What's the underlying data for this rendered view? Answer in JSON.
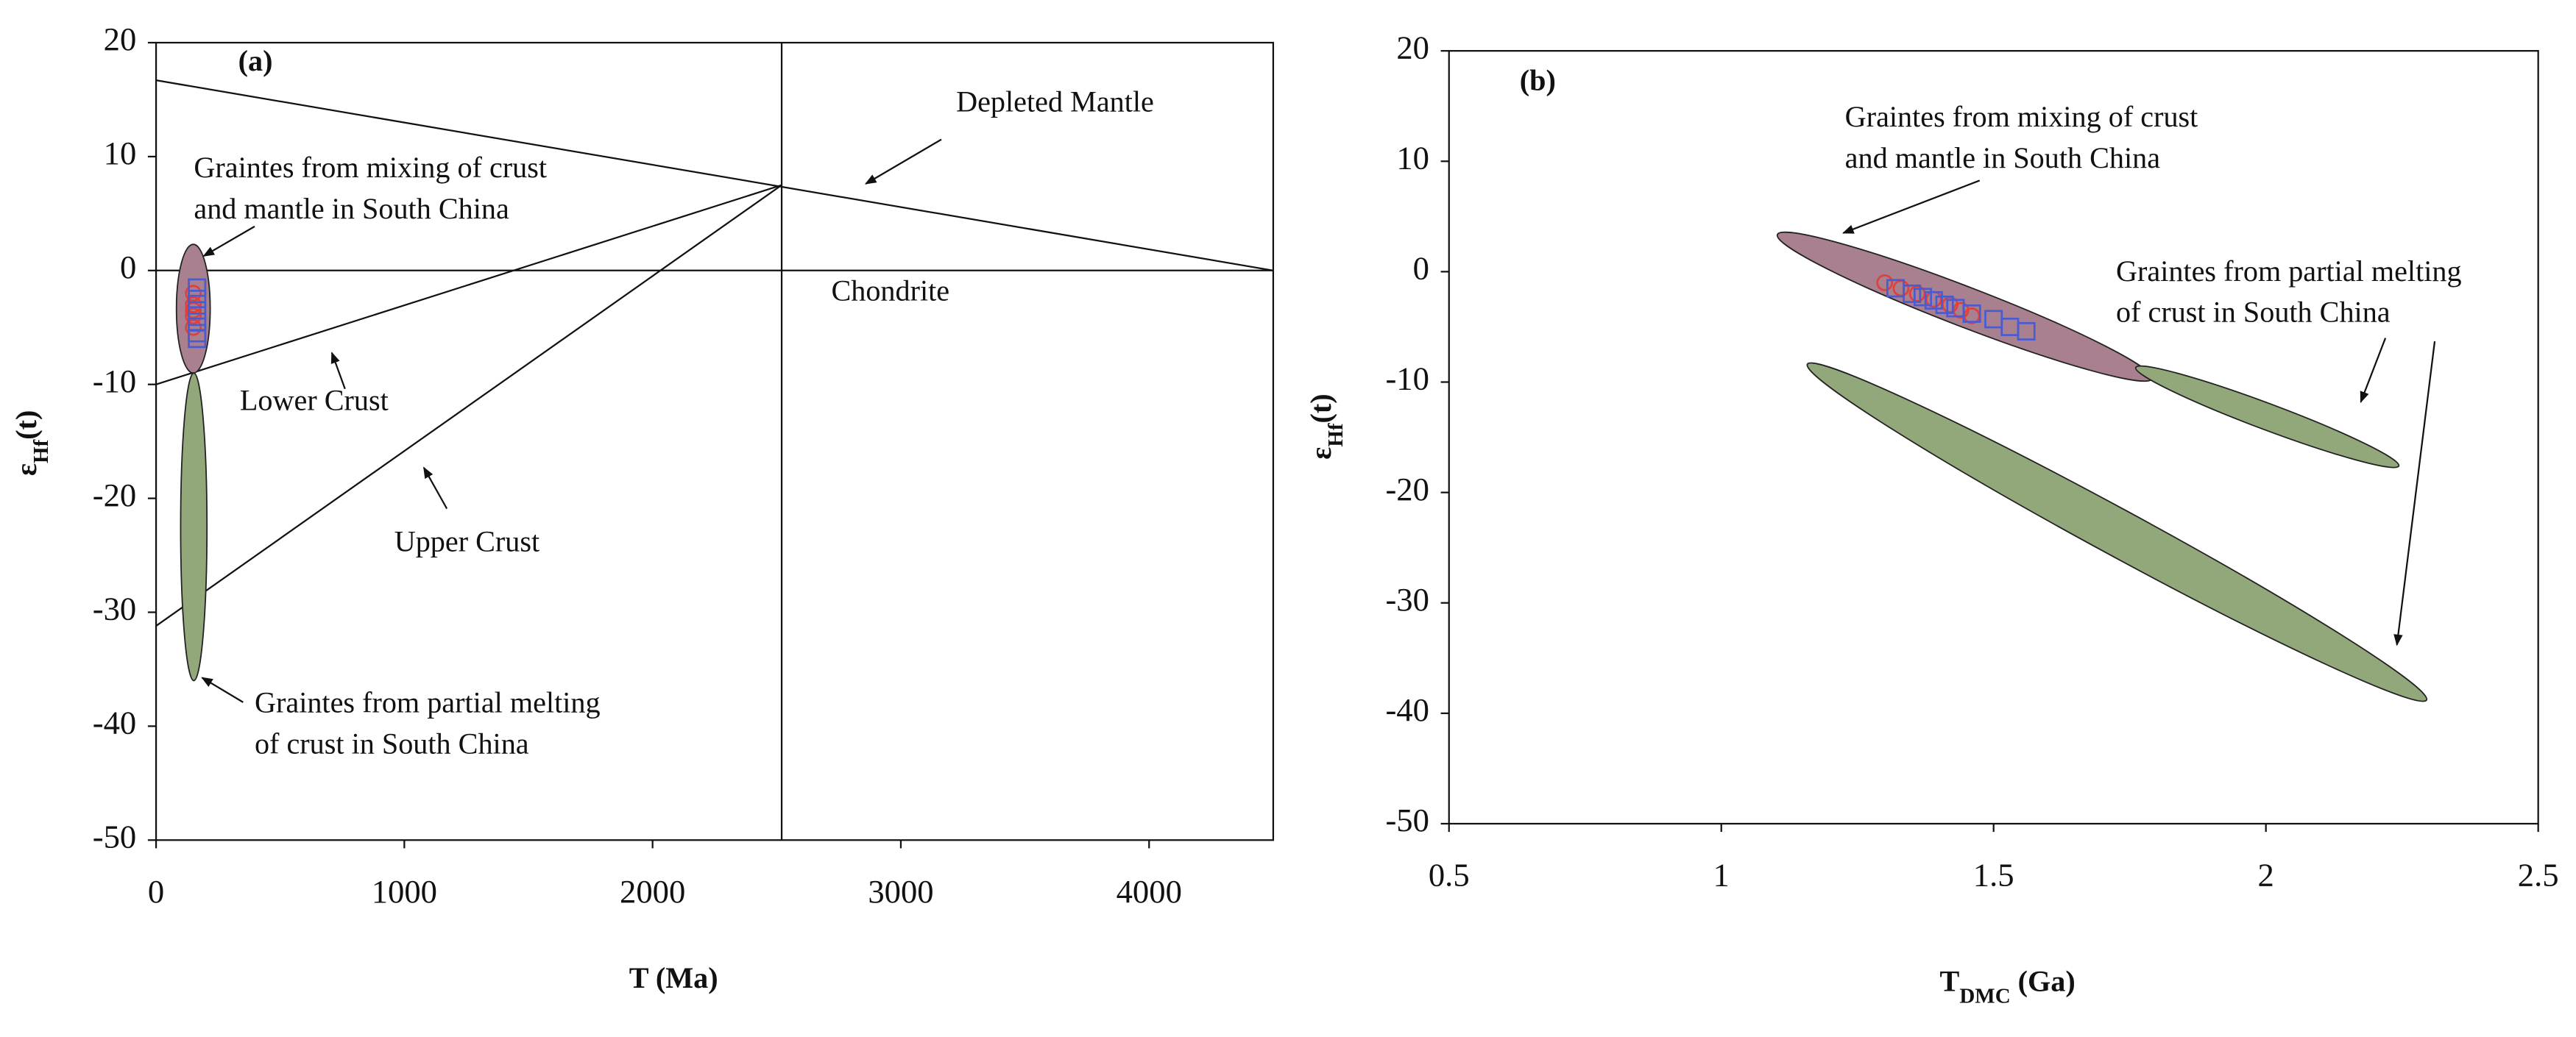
{
  "chart_data": [
    {
      "type": "scatter",
      "panel_label": "(a)",
      "x_label": "T (Ma)",
      "y_label": [
        "ε",
        "Hf",
        "(t)"
      ],
      "xlim": [
        0,
        4500
      ],
      "ylim": [
        -50,
        20
      ],
      "xticks": [
        0,
        1000,
        2000,
        3000,
        4000
      ],
      "yticks": [
        -50,
        -40,
        -30,
        -20,
        -10,
        0,
        10,
        20
      ],
      "lines": [
        {
          "name": "Depleted Mantle",
          "x": [
            0,
            4500
          ],
          "values": [
            16.7,
            0
          ]
        },
        {
          "name": "Chondrite",
          "x": [
            0,
            4500
          ],
          "values": [
            0,
            0
          ]
        },
        {
          "name": "Lower Crust",
          "x": [
            0,
            2520
          ],
          "values": [
            -10,
            7.5
          ]
        },
        {
          "name": "Upper Crust",
          "x": [
            0,
            2520
          ],
          "values": [
            -31.2,
            7.5
          ]
        }
      ],
      "vlines": [
        2520
      ],
      "ellipses": [
        {
          "color": "#a8808f",
          "ends_x": [
            150,
            150
          ],
          "ends_y": [
            2.3,
            -9
          ],
          "edge": [
            218,
            -3.3
          ]
        },
        {
          "color": "#93a87a",
          "ends_x": [
            152,
            152
          ],
          "ends_y": [
            -9,
            -36
          ],
          "edge": [
            205,
            -22.5
          ]
        }
      ],
      "series": [
        {
          "color": "#e0403a",
          "marker": "circle",
          "x": [
            150,
            150,
            150,
            150,
            150
          ],
          "values": [
            -2,
            -3,
            -3.5,
            -4,
            -5
          ]
        },
        {
          "color": "#4a5bd0",
          "marker": "square",
          "x": [
            165,
            165,
            165,
            165,
            165,
            165
          ],
          "values": [
            -1.5,
            -2.5,
            -3.5,
            -4.5,
            -5.5,
            -6
          ]
        }
      ],
      "annotations": [
        {
          "lines": [
            "Graintes from mixing of crust",
            "and mantle in South China"
          ]
        },
        {
          "lines": [
            "Graintes from partial melting",
            "of crust in South China"
          ]
        }
      ]
    },
    {
      "type": "scatter",
      "panel_label": "(b)",
      "x_label": [
        "T",
        "DMC",
        " (Ga)"
      ],
      "y_label": [
        "ε",
        "Hf",
        "(t)"
      ],
      "xlim": [
        0.5,
        2.5
      ],
      "ylim": [
        -50,
        20
      ],
      "xticks": [
        0.5,
        1,
        1.5,
        2,
        2.5
      ],
      "yticks": [
        -50,
        -40,
        -30,
        -20,
        -10,
        0,
        10,
        20
      ],
      "ellipses": [
        {
          "color": "#a8808f",
          "ends_x": [
            1.103,
            1.791
          ],
          "ends_y": [
            3.36,
            -9.7
          ],
          "edge": [
            1.433,
            -4.84
          ]
        },
        {
          "color": "#93a87a",
          "ends_x": [
            1.761,
            2.244
          ],
          "ends_y": [
            -8.68,
            -17.6
          ],
          "edge": [
            1.994,
            -14.25
          ]
        },
        {
          "color": "#93a87a",
          "ends_x": [
            1.158,
            2.295
          ],
          "ends_y": [
            -8.38,
            -38.8
          ],
          "edge": [
            1.706,
            -25.44
          ]
        }
      ],
      "series": [
        {
          "color": "#e0403a",
          "marker": "circle",
          "x": [
            1.3,
            1.33,
            1.36,
            1.39,
            1.42,
            1.44,
            1.46
          ],
          "values": [
            -1,
            -1.5,
            -2,
            -2.5,
            -3,
            -3.5,
            -4
          ]
        },
        {
          "color": "#4a5bd0",
          "marker": "square",
          "x": [
            1.32,
            1.35,
            1.37,
            1.39,
            1.41,
            1.43,
            1.46,
            1.5,
            1.53,
            1.56
          ],
          "values": [
            -1.5,
            -2,
            -2.3,
            -2.6,
            -3,
            -3.3,
            -3.8,
            -4.3,
            -5,
            -5.4
          ]
        }
      ],
      "annotations": [
        {
          "lines": [
            "Graintes from mixing of crust",
            "and mantle in South China"
          ]
        },
        {
          "lines": [
            "Graintes from partial melting",
            "of crust in South China"
          ]
        }
      ]
    }
  ]
}
